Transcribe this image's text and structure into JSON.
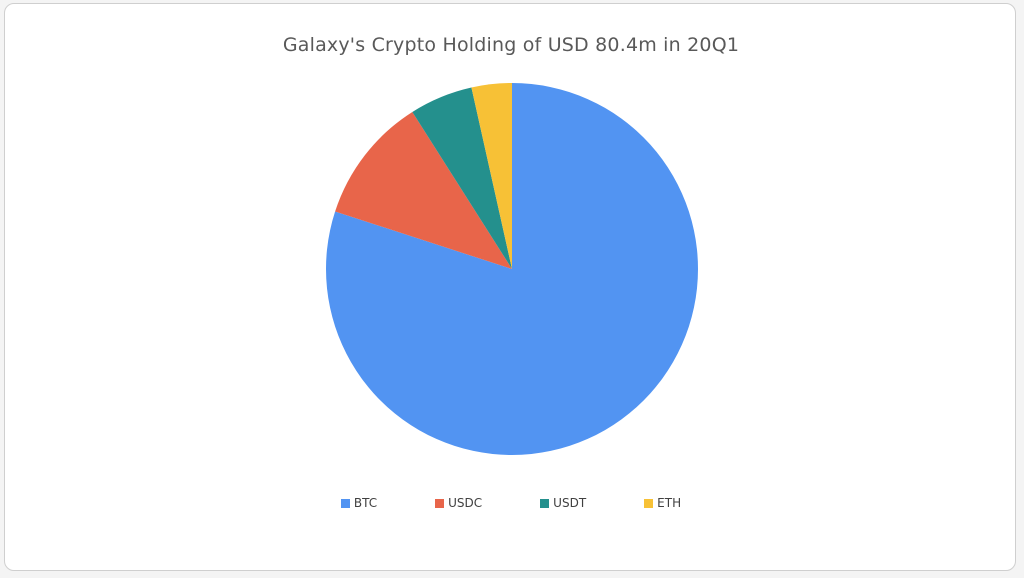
{
  "chart_data": {
    "type": "pie",
    "title": "Galaxy's Crypto Holding of USD 80.4m in 20Q1",
    "categories": [
      "BTC",
      "USDC",
      "USDT",
      "ETH"
    ],
    "values": [
      80.0,
      11.0,
      5.5,
      3.5
    ],
    "colors": [
      "#5294f2",
      "#e8654a",
      "#24908d",
      "#f7c136"
    ],
    "start_angle_deg": 0,
    "direction": "clockwise",
    "legend_position": "bottom"
  }
}
